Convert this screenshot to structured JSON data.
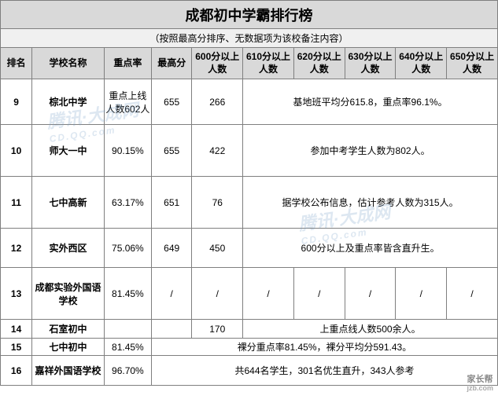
{
  "title": "成都初中学霸排行榜",
  "subtitle": "（按照最高分排序、无数据项为该校备注内容）",
  "headers": {
    "rank": "排名",
    "school": "学校名称",
    "rate": "重点率",
    "topscore": "最高分",
    "c600": "600分以上人数",
    "c610": "610分以上人数",
    "c620": "620分以上人数",
    "c630": "630分以上人数",
    "c640": "640分以上人数",
    "c650": "650分以上人数"
  },
  "rows": [
    {
      "rank": "9",
      "school": "棕北中学",
      "rate": "重点上线人数602人",
      "topscore": "655",
      "c600": "266",
      "note": "基地班平均分615.8，重点率96.1%。"
    },
    {
      "rank": "10",
      "school": "师大一中",
      "rate": "90.15%",
      "topscore": "655",
      "c600": "422",
      "note": "参加中考学生人数为802人。"
    },
    {
      "rank": "11",
      "school": "七中高新",
      "rate": "63.17%",
      "topscore": "651",
      "c600": "76",
      "note": "据学校公布信息，估计参考人数为315人。"
    },
    {
      "rank": "12",
      "school": "实外西区",
      "rate": "75.06%",
      "topscore": "649",
      "c600": "450",
      "note": "600分以上及重点率皆含直升生。"
    },
    {
      "rank": "13",
      "school": "成都实验外国语学校",
      "rate": "81.45%",
      "topscore": "/",
      "c600": "/",
      "c610": "/",
      "c620": "/",
      "c630": "/",
      "c640": "/",
      "c650": "/"
    },
    {
      "rank": "14",
      "school": "石室初中",
      "rate": "",
      "topscore": "",
      "c600": "170",
      "note": "上重点线人数500余人。"
    },
    {
      "rank": "15",
      "school": "七中初中",
      "rate": "81.45%",
      "note_full": "裸分重点率81.45%，裸分平均分591.43。"
    },
    {
      "rank": "16",
      "school": "嘉祥外国语学校",
      "rate": "96.70%",
      "note_full": "共644名学生，301名优生直升，343人参考"
    }
  ],
  "watermark": {
    "text": "腾讯·大成网",
    "sub": "CD.QQ.com"
  },
  "footer": {
    "main": "家长帮",
    "sub": "jzb.com"
  },
  "colors": {
    "border": "#7f7f7f",
    "header_bg": "#d9d9d9",
    "subtitle_bg": "#f0f0f0",
    "cell_bg": "#ffffff",
    "text": "#000000"
  }
}
